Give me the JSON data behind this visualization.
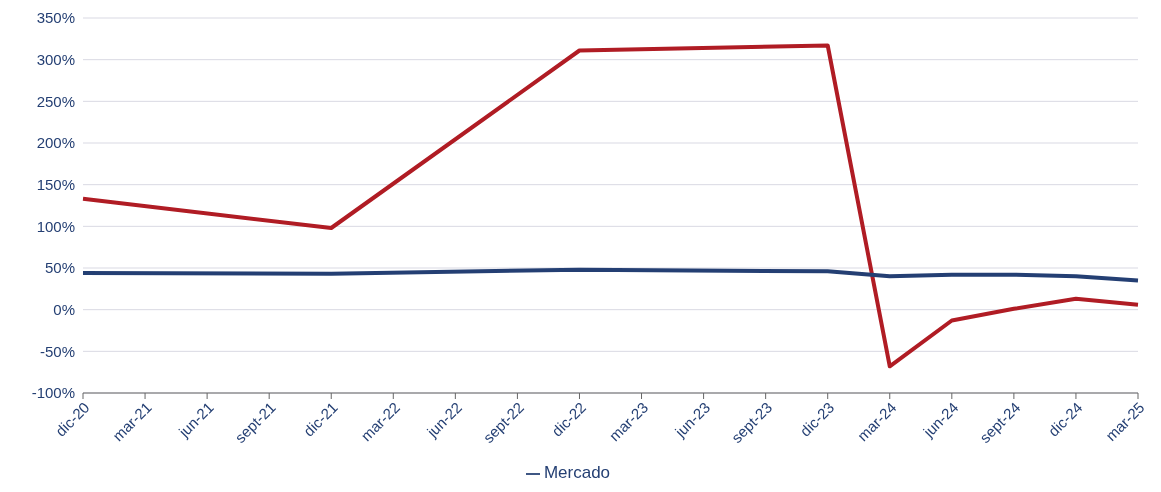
{
  "chart_data": {
    "type": "line",
    "categories": [
      "dic-20",
      "mar-21",
      "jun-21",
      "sept-21",
      "dic-21",
      "mar-22",
      "jun-22",
      "sept-22",
      "dic-22",
      "mar-23",
      "jun-23",
      "sept-23",
      "dic-23",
      "mar-24",
      "jun-24",
      "sept-24",
      "dic-24",
      "mar-25"
    ],
    "series": [
      {
        "color": "#b01c24",
        "values": [
          133,
          null,
          null,
          null,
          98,
          null,
          null,
          null,
          311,
          null,
          null,
          null,
          317,
          -68,
          -13,
          1,
          13,
          6
        ]
      },
      {
        "name": "Mercado",
        "color": "#243f73",
        "values": [
          44,
          null,
          null,
          null,
          43,
          null,
          null,
          null,
          48,
          null,
          null,
          null,
          46,
          40,
          42,
          42,
          40,
          35
        ]
      }
    ],
    "ylim": [
      -100,
      350
    ],
    "yticks": [
      {
        "value": -100,
        "label": "-100%"
      },
      {
        "value": -50,
        "label": "-50%"
      },
      {
        "value": 0,
        "label": "0%"
      },
      {
        "value": 50,
        "label": "50%"
      },
      {
        "value": 100,
        "label": "100%"
      },
      {
        "value": 150,
        "label": "150%"
      },
      {
        "value": 200,
        "label": "200%"
      },
      {
        "value": 250,
        "label": "250%"
      },
      {
        "value": 300,
        "label": "300%"
      },
      {
        "value": 350,
        "label": "350%"
      }
    ],
    "grid": "y",
    "legend": "bottom",
    "marker": "none",
    "line_style": "solid"
  }
}
